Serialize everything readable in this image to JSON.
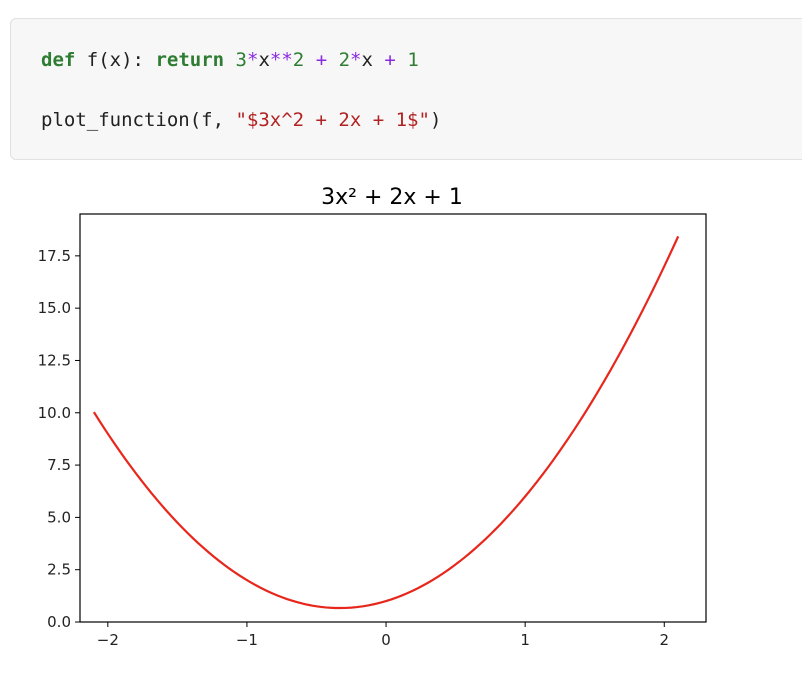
{
  "code": {
    "line1": {
      "def": "def",
      "fname": "f(x):",
      "return": "return",
      "n3": "3",
      "star1": "*",
      "x1": "x",
      "pow": "**",
      "n2a": "2",
      "plus1": "+",
      "n2b": "2",
      "star2": "*",
      "x2": "x",
      "plus2": "+",
      "n1": "1"
    },
    "line2": {
      "call": "plot_function(f, ",
      "str": "\"$3x^2 + 2x + 1$\"",
      "close": ")"
    }
  },
  "chart_data": {
    "type": "line",
    "title": "3x² + 2x + 1",
    "xlabel": "",
    "ylabel": "",
    "xlim": [
      -2.2,
      2.3
    ],
    "ylim": [
      0,
      19.5
    ],
    "x_ticks": [
      -2,
      -1,
      0,
      1,
      2
    ],
    "x_tick_labels": [
      "−2",
      "−1",
      "0",
      "1",
      "2"
    ],
    "y_ticks": [
      0.0,
      2.5,
      5.0,
      7.5,
      10.0,
      12.5,
      15.0,
      17.5
    ],
    "y_tick_labels": [
      "0.0",
      "2.5",
      "5.0",
      "7.5",
      "10.0",
      "12.5",
      "15.0",
      "17.5"
    ],
    "grid": false,
    "series": [
      {
        "color": "#e8271c",
        "x": [
          -2.1,
          -1.8,
          -1.5,
          -1.2,
          -0.9,
          -0.6,
          -0.333,
          0.0,
          0.3,
          0.6,
          0.9,
          1.2,
          1.5,
          1.8,
          2.1
        ],
        "y": [
          10.03,
          7.12,
          4.75,
          2.92,
          1.63,
          0.88,
          0.67,
          1.0,
          1.87,
          3.28,
          5.23,
          7.72,
          10.75,
          14.32,
          18.43
        ]
      }
    ]
  }
}
